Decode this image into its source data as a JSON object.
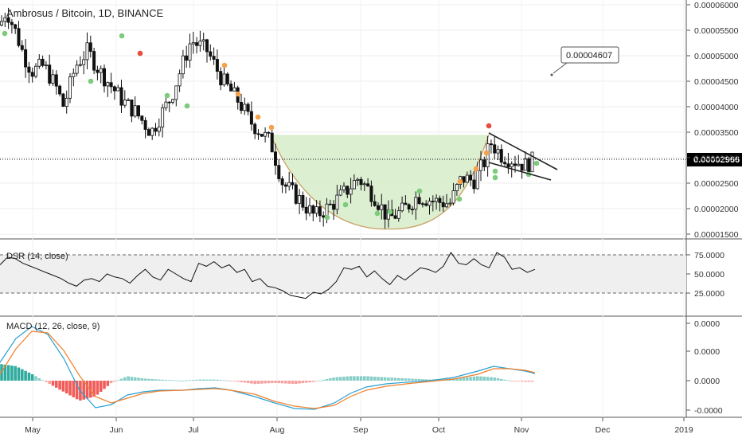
{
  "chart_data": {
    "type": "candlestick",
    "title": "Ambrosus / Bitcoin, 1D, BINANCE",
    "price_axis": {
      "ticks": [
        "0.00006000",
        "0.00005500",
        "0.00005000",
        "0.00004500",
        "0.00004000",
        "0.00003500",
        "0.00003000",
        "0.00002500",
        "0.00002000",
        "0.00001500"
      ],
      "range": [
        1.4e-05,
        6.15e-05
      ]
    },
    "current_price": "0.00002966",
    "callout": "0.00004607",
    "time_axis": {
      "labels": [
        "May",
        "Jun",
        "Jul",
        "Aug",
        "Sep",
        "Oct",
        "Nov",
        "Dec",
        "2019"
      ]
    },
    "pattern": {
      "name": "cup and handle",
      "cup_rim": 3.45e-05,
      "cup_bottom": 1.6e-05
    },
    "dsr": {
      "label": "DSR (14, close)",
      "ticks": [
        "75.0000",
        "50.0000",
        "25.0000"
      ],
      "upper_band": 70,
      "lower_band": 30,
      "values": [
        62,
        72,
        70,
        64,
        60,
        56,
        52,
        48,
        44,
        38,
        34,
        42,
        44,
        40,
        50,
        46,
        44,
        38,
        48,
        56,
        46,
        42,
        56,
        50,
        44,
        40,
        64,
        60,
        66,
        58,
        62,
        52,
        56,
        40,
        44,
        34,
        32,
        28,
        22,
        20,
        18,
        26,
        24,
        30,
        40,
        58,
        56,
        60,
        46,
        54,
        44,
        36,
        48,
        42,
        50,
        58,
        56,
        52,
        60,
        78,
        64,
        62,
        70,
        62,
        58,
        78,
        72,
        56,
        58,
        52,
        56
      ],
      "color": "#111111"
    },
    "macd": {
      "label": "MACD (12, 26, close, 9)",
      "ticks": [
        "0.0000",
        "0.0000",
        "0.0000",
        "-0.0000"
      ],
      "macd_color": "#29a0d4",
      "signal_color": "#f07f2a",
      "hist_pos_color": "#26a69a",
      "hist_neg_color": "#ef5350"
    },
    "colors": {
      "cup_fill": "#d6ecc9",
      "candle": "#111111",
      "dot_green": "#7ccc7c",
      "dot_orange": "#f4a14b",
      "dot_red": "#e74c3c"
    }
  }
}
